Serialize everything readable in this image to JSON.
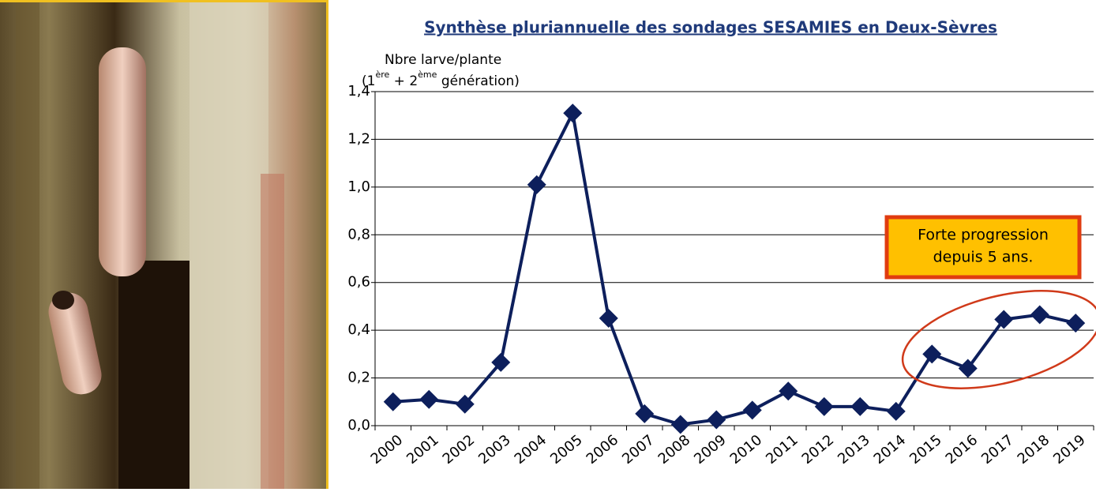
{
  "chart_data": {
    "type": "line",
    "title": "Synthèse pluriannuelle des sondages SESAMIES en Deux-Sèvres",
    "y_label": {
      "line1": "Nbre larve/plante",
      "line2": [
        "(1",
        "ère",
        " + 2",
        "ème",
        " génération)"
      ]
    },
    "annotation": [
      "Forte progression",
      "depuis 5 ans."
    ],
    "categories": [
      "2000",
      "2001",
      "2002",
      "2003",
      "2004",
      "2005",
      "2006",
      "2007",
      "2008",
      "2009",
      "2010",
      "2011",
      "2012",
      "2013",
      "2014",
      "2015",
      "2016",
      "2017",
      "2018",
      "2019"
    ],
    "values": [
      0.1,
      0.11,
      0.09,
      0.265,
      1.01,
      1.31,
      0.45,
      0.05,
      0.005,
      0.025,
      0.065,
      0.145,
      0.08,
      0.08,
      0.06,
      0.3,
      0.24,
      0.445,
      0.465,
      0.43
    ],
    "color": "#0d1f5c",
    "ylim": [
      0,
      1.4
    ],
    "yticks": [
      {
        "value": 0,
        "label": "0,0"
      },
      {
        "value": 0.2,
        "label": "0,2"
      },
      {
        "value": 0.4,
        "label": "0,4"
      },
      {
        "value": 0.6,
        "label": "0,6"
      },
      {
        "value": 0.8,
        "label": "0,8"
      },
      {
        "value": 1.0,
        "label": "1,0"
      },
      {
        "value": 1.2,
        "label": "1,2"
      },
      {
        "value": 1.4,
        "label": "1,4"
      }
    ],
    "grid": true
  }
}
